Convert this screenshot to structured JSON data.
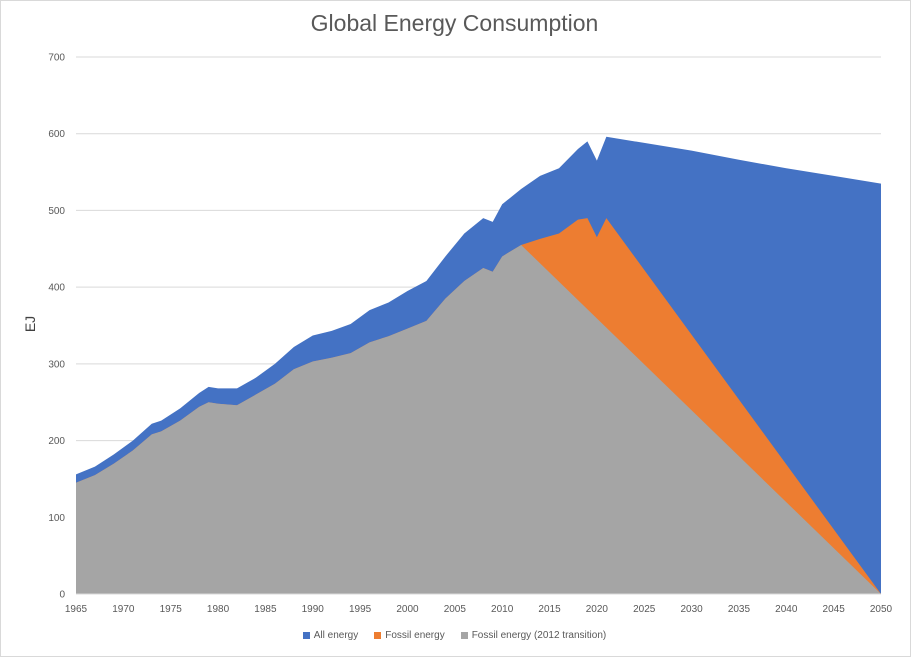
{
  "chart_data": {
    "type": "area",
    "title": "Global Energy Consumption",
    "xlabel": "",
    "ylabel": "EJ",
    "xlim": [
      1965,
      2050
    ],
    "ylim": [
      0,
      700
    ],
    "y_ticks": [
      0,
      100,
      200,
      300,
      400,
      500,
      600,
      700
    ],
    "x_ticks": [
      1965,
      1970,
      1975,
      1980,
      1985,
      1990,
      1995,
      2000,
      2005,
      2010,
      2015,
      2020,
      2025,
      2030,
      2035,
      2040,
      2045,
      2050
    ],
    "grid": true,
    "legend_position": "bottom",
    "series": [
      {
        "name": "All energy",
        "color": "#4472C4",
        "points": [
          [
            1965,
            156
          ],
          [
            1967,
            166
          ],
          [
            1969,
            182
          ],
          [
            1971,
            200
          ],
          [
            1973,
            222
          ],
          [
            1974,
            226
          ],
          [
            1976,
            242
          ],
          [
            1978,
            262
          ],
          [
            1979,
            270
          ],
          [
            1980,
            268
          ],
          [
            1982,
            268
          ],
          [
            1984,
            282
          ],
          [
            1986,
            300
          ],
          [
            1988,
            322
          ],
          [
            1990,
            337
          ],
          [
            1992,
            343
          ],
          [
            1994,
            352
          ],
          [
            1996,
            370
          ],
          [
            1998,
            380
          ],
          [
            2000,
            395
          ],
          [
            2002,
            408
          ],
          [
            2004,
            440
          ],
          [
            2006,
            470
          ],
          [
            2008,
            490
          ],
          [
            2009,
            485
          ],
          [
            2010,
            508
          ],
          [
            2012,
            528
          ],
          [
            2014,
            545
          ],
          [
            2016,
            555
          ],
          [
            2018,
            580
          ],
          [
            2019,
            590
          ],
          [
            2020,
            565
          ],
          [
            2021,
            596
          ],
          [
            2025,
            588
          ],
          [
            2030,
            578
          ],
          [
            2035,
            566
          ],
          [
            2040,
            555
          ],
          [
            2045,
            545
          ],
          [
            2050,
            535
          ]
        ]
      },
      {
        "name": "Fossil energy",
        "color": "#ED7D31",
        "points": [
          [
            1965,
            145
          ],
          [
            1967,
            155
          ],
          [
            1969,
            170
          ],
          [
            1971,
            187
          ],
          [
            1973,
            208
          ],
          [
            1974,
            212
          ],
          [
            1976,
            226
          ],
          [
            1978,
            244
          ],
          [
            1979,
            250
          ],
          [
            1980,
            248
          ],
          [
            1982,
            246
          ],
          [
            1984,
            260
          ],
          [
            1986,
            274
          ],
          [
            1988,
            293
          ],
          [
            1990,
            303
          ],
          [
            1992,
            308
          ],
          [
            1994,
            314
          ],
          [
            1996,
            328
          ],
          [
            1998,
            336
          ],
          [
            2000,
            346
          ],
          [
            2002,
            356
          ],
          [
            2004,
            385
          ],
          [
            2006,
            408
          ],
          [
            2008,
            425
          ],
          [
            2009,
            420
          ],
          [
            2010,
            440
          ],
          [
            2012,
            455
          ],
          [
            2014,
            463
          ],
          [
            2016,
            470
          ],
          [
            2018,
            488
          ],
          [
            2019,
            490
          ],
          [
            2020,
            465
          ],
          [
            2021,
            490
          ],
          [
            2050,
            0
          ]
        ]
      },
      {
        "name": "Fossil energy (2012 transition)",
        "color": "#A5A5A5",
        "points": [
          [
            1965,
            145
          ],
          [
            1967,
            155
          ],
          [
            1969,
            170
          ],
          [
            1971,
            187
          ],
          [
            1973,
            208
          ],
          [
            1974,
            212
          ],
          [
            1976,
            226
          ],
          [
            1978,
            244
          ],
          [
            1979,
            250
          ],
          [
            1980,
            248
          ],
          [
            1982,
            246
          ],
          [
            1984,
            260
          ],
          [
            1986,
            274
          ],
          [
            1988,
            293
          ],
          [
            1990,
            303
          ],
          [
            1992,
            308
          ],
          [
            1994,
            314
          ],
          [
            1996,
            328
          ],
          [
            1998,
            336
          ],
          [
            2000,
            346
          ],
          [
            2002,
            356
          ],
          [
            2004,
            385
          ],
          [
            2006,
            408
          ],
          [
            2008,
            425
          ],
          [
            2009,
            420
          ],
          [
            2010,
            440
          ],
          [
            2012,
            455
          ],
          [
            2050,
            0
          ]
        ]
      }
    ]
  }
}
